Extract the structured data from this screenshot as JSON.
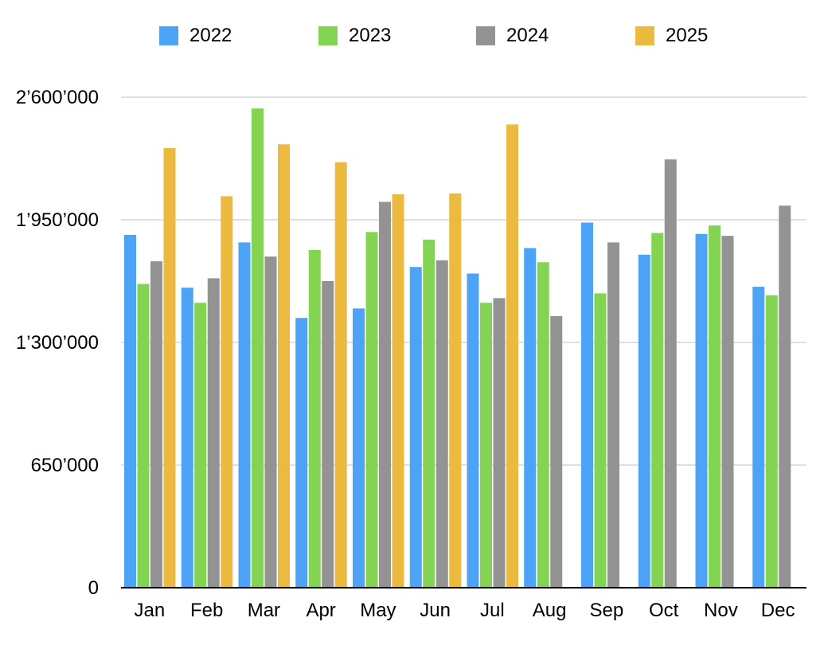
{
  "chart_data": {
    "type": "bar",
    "title": "",
    "xlabel": "",
    "ylabel": "",
    "categories": [
      "Jan",
      "Feb",
      "Mar",
      "Apr",
      "May",
      "Jun",
      "Jul",
      "Aug",
      "Sep",
      "Oct",
      "Nov",
      "Dec"
    ],
    "ylim": [
      0,
      2600000
    ],
    "yticks": [
      0,
      650000,
      1300000,
      1950000,
      2600000
    ],
    "ytick_labels": [
      "0",
      "650’000",
      "1’300’000",
      "1’950’000",
      "2’600’000"
    ],
    "grid": true,
    "legend_position": "top",
    "series": [
      {
        "name": "2022",
        "color": "#4da3f5",
        "values": [
          1870000,
          1590000,
          1830000,
          1430000,
          1480000,
          1700000,
          1665000,
          1800000,
          1935000,
          1765000,
          1875000,
          1595000
        ]
      },
      {
        "name": "2023",
        "color": "#82d452",
        "values": [
          1610000,
          1510000,
          2540000,
          1790000,
          1885000,
          1845000,
          1510000,
          1725000,
          1560000,
          1880000,
          1920000,
          1550000
        ]
      },
      {
        "name": "2024",
        "color": "#939393",
        "values": [
          1730000,
          1640000,
          1755000,
          1625000,
          2045000,
          1735000,
          1535000,
          1440000,
          1830000,
          2270000,
          1865000,
          2025000
        ]
      },
      {
        "name": "2025",
        "color": "#ecba3e",
        "values": [
          2330000,
          2075000,
          2350000,
          2255000,
          2085000,
          2090000,
          2455000,
          null,
          null,
          null,
          null,
          null
        ]
      }
    ]
  }
}
